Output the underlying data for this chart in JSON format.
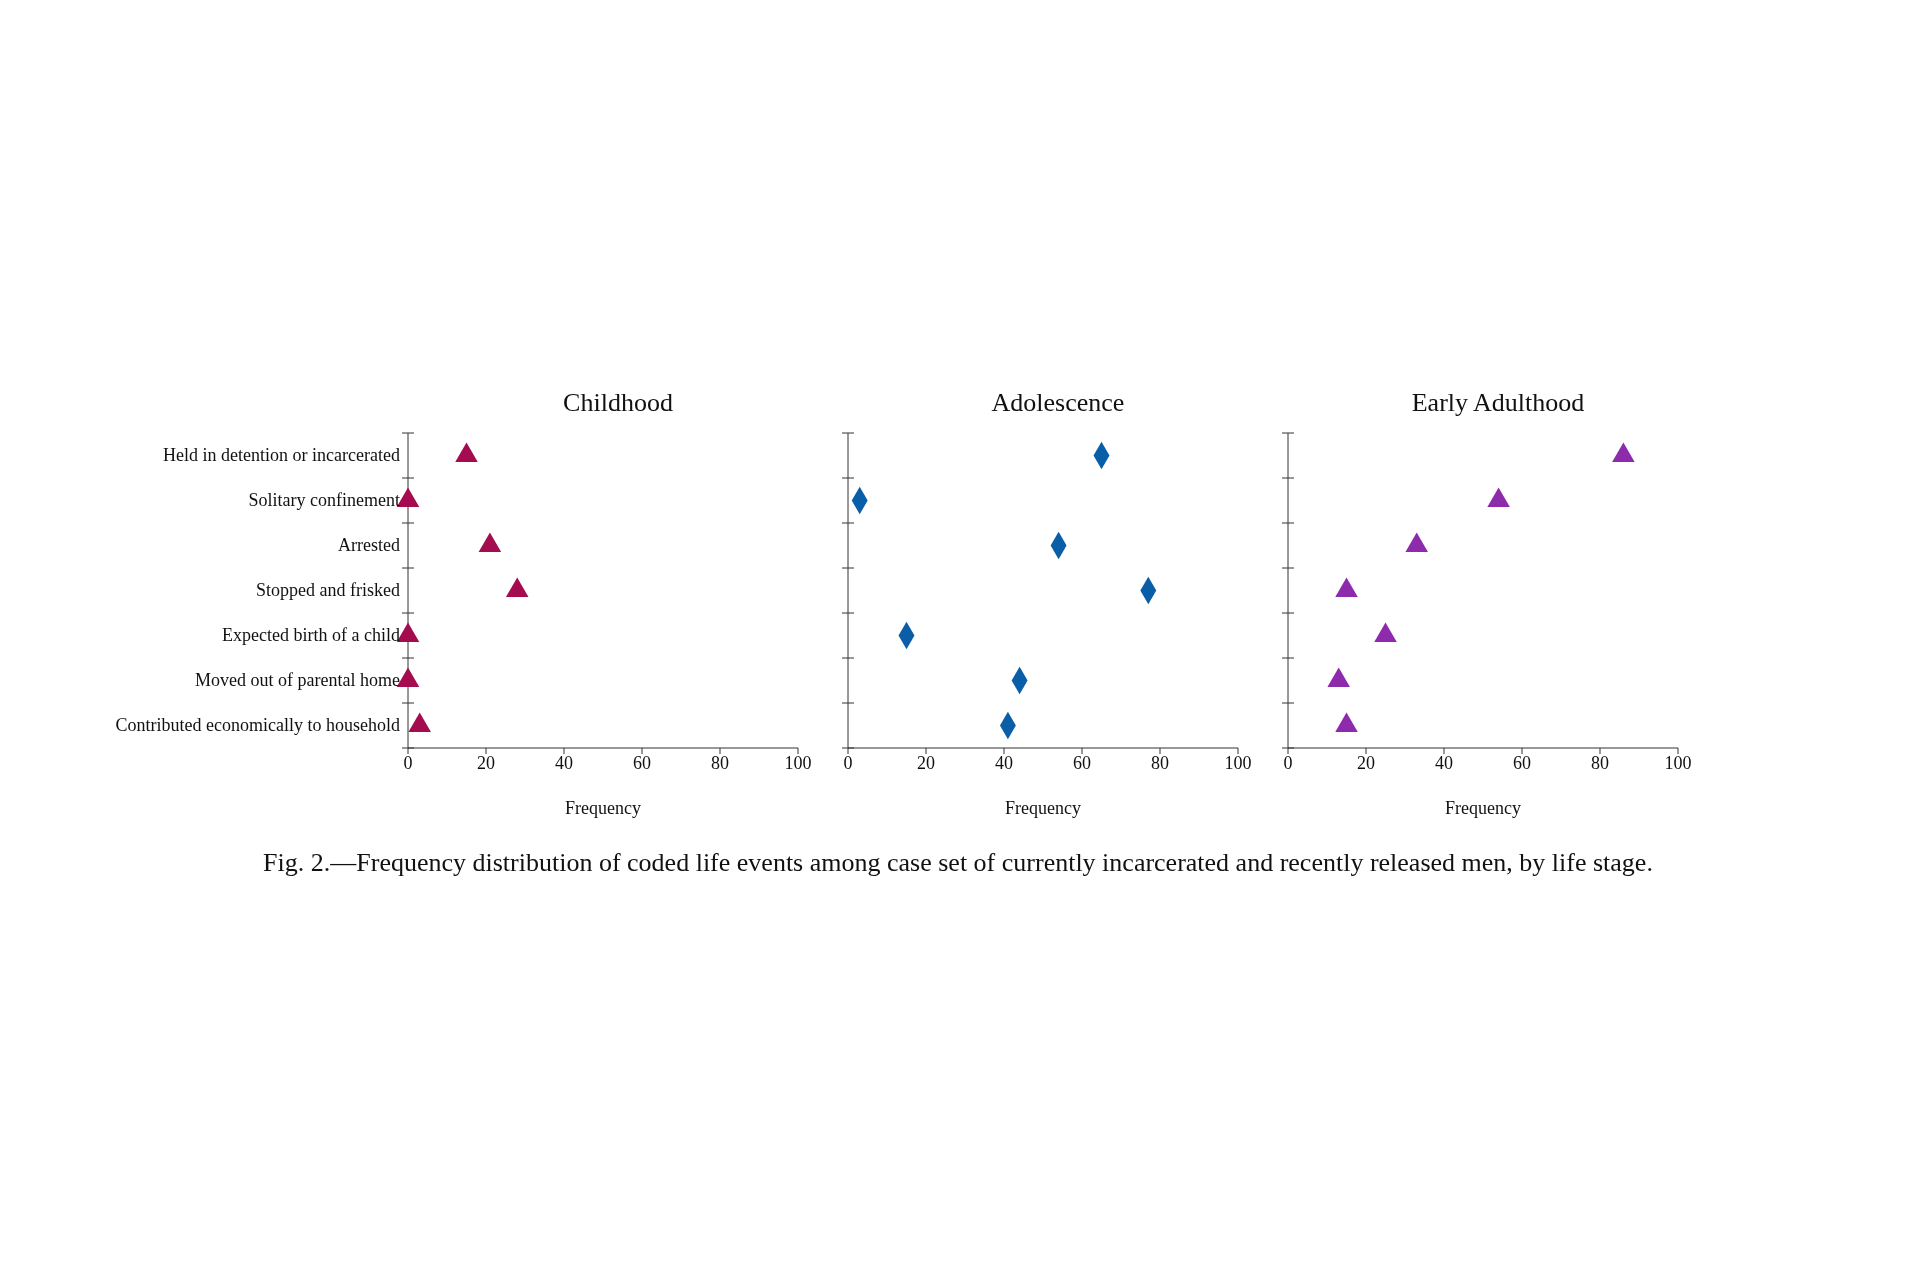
{
  "chart_data": [
    {
      "type": "scatter",
      "title": "Childhood",
      "xlabel": "Frequency",
      "orientation": "horizontal",
      "marker": "triangle",
      "categories": [
        "Held in detention or incarcerated",
        "Solitary confinement",
        "Arrested",
        "Stopped and frisked",
        "Expected birth of a child",
        "Moved out of parental home",
        "Contributed economically to household"
      ],
      "series": [
        {
          "color": "#a50b4f",
          "values": [
            15,
            0,
            21,
            28,
            0,
            0,
            3
          ]
        }
      ],
      "xlim": [
        0,
        100
      ],
      "xticks": [
        0,
        20,
        40,
        60,
        80,
        100
      ]
    },
    {
      "type": "scatter",
      "title": "Adolescence",
      "xlabel": "Frequency",
      "orientation": "horizontal",
      "marker": "diamond",
      "tick_labels": "x",
      "series": [
        {
          "color": "#0a5ea8",
          "values": [
            65,
            3,
            54,
            77,
            15,
            44,
            41
          ]
        }
      ],
      "xlim": [
        0,
        100
      ],
      "xticks": [
        0,
        20,
        40,
        60,
        80,
        100
      ]
    },
    {
      "type": "scatter",
      "title": "Early Adulthood",
      "xlabel": "Frequency",
      "orientation": "horizontal",
      "marker": "triangle",
      "tick_labels": "x",
      "series": [
        {
          "color": "#8e2bad",
          "values": [
            86,
            54,
            33,
            15,
            25,
            13,
            15
          ]
        }
      ],
      "xlim": [
        0,
        100
      ],
      "xticks": [
        0,
        20,
        40,
        60,
        80,
        100
      ],
      "annotations": [
        "Fig. 2.—Frequency distribution of coded life events among case set of currently incarcerated and recently released men, by life stage."
      ]
    }
  ]
}
